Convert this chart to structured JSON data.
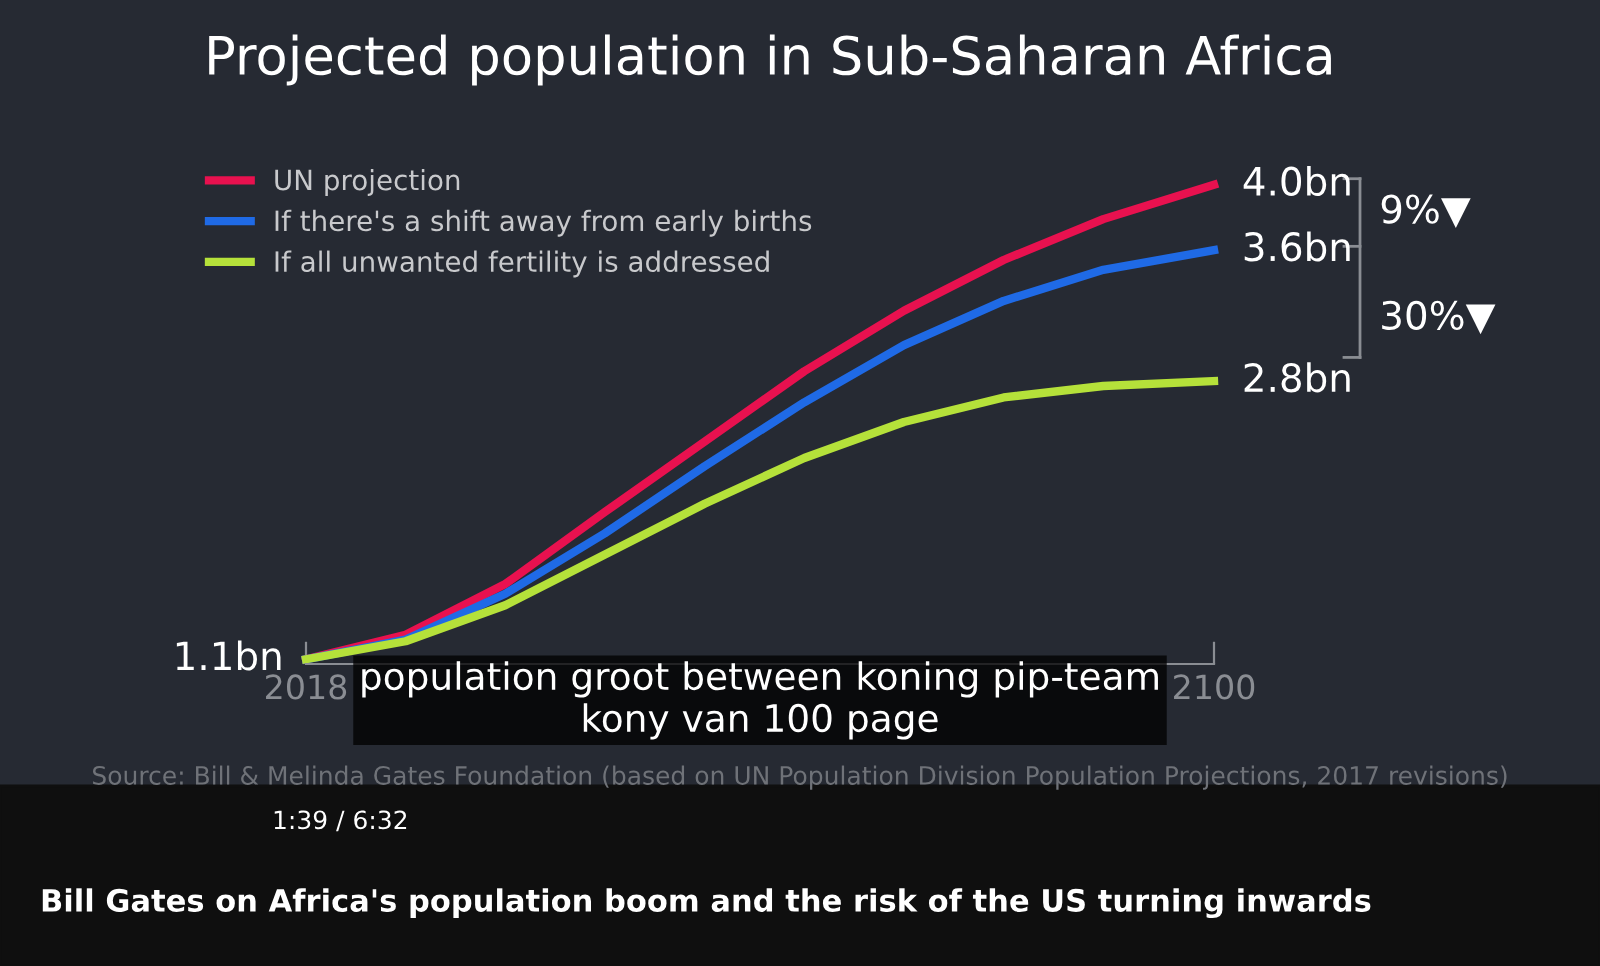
{
  "chart_data": {
    "type": "line",
    "title": "Projected population in Sub-Saharan Africa",
    "x": [
      2018,
      2027,
      2036,
      2045,
      2054,
      2063,
      2072,
      2081,
      2090,
      2100
    ],
    "xlim": [
      2018,
      2100
    ],
    "xticks": [
      2018,
      2100
    ],
    "tick_labels": "x",
    "series": [
      {
        "name": "UN projection",
        "color": "#e8114f",
        "values": [
          1.1,
          1.25,
          1.56,
          2.0,
          2.43,
          2.86,
          3.23,
          3.54,
          3.79,
          4.0
        ],
        "value_labels": [
          "1.1bn",
          null,
          null,
          null,
          null,
          null,
          null,
          null,
          null,
          "4.0bn"
        ]
      },
      {
        "name": "If there's a shift away from early births",
        "color": "#1f6ae6",
        "values": [
          1.1,
          1.22,
          1.5,
          1.87,
          2.28,
          2.67,
          3.02,
          3.29,
          3.48,
          3.6
        ],
        "value_labels": [
          null,
          null,
          null,
          null,
          null,
          null,
          null,
          null,
          null,
          "3.6bn"
        ]
      },
      {
        "name": "If all unwanted fertility is addressed",
        "color": "#b5e13a",
        "values": [
          1.1,
          1.21,
          1.43,
          1.74,
          2.05,
          2.33,
          2.55,
          2.7,
          2.77,
          2.8
        ],
        "value_labels": [
          null,
          null,
          null,
          null,
          null,
          null,
          null,
          null,
          null,
          "2.8bn"
        ]
      }
    ],
    "legend": "top left",
    "grid": false,
    "marker": "none",
    "line_style": "solid",
    "annotations": [
      "9%▼",
      "30%▼",
      "Source: Bill & Melinda Gates Foundation (based on UN Population Division Population Projections, 2017 revisions)",
      "population groot between koning pip-team\nkony van 100 page",
      "Bill Gates on Africa's population boom and the risk of the US turning inwards",
      "1:39 / 6:32"
    ]
  }
}
